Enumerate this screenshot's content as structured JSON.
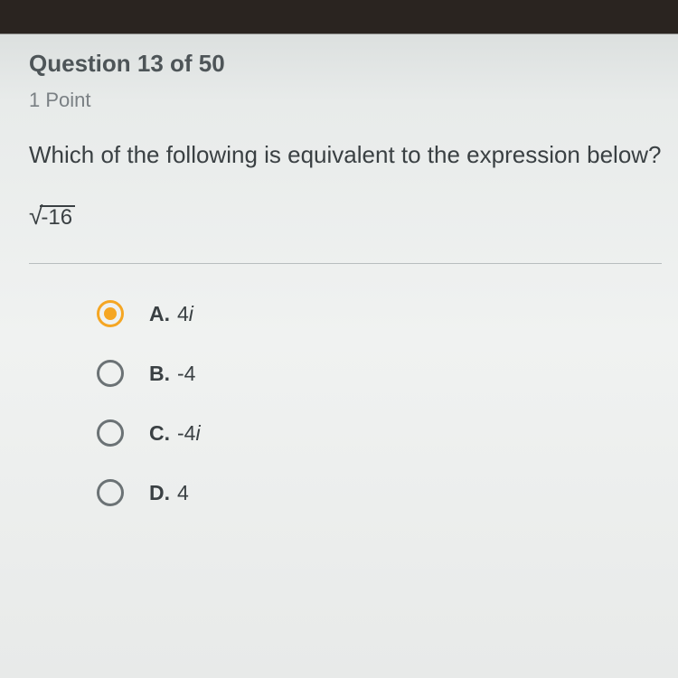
{
  "question": {
    "number": 13,
    "total": 50,
    "title_text": "Question 13 of 50",
    "points_text": "1 Point",
    "prompt": "Which of the following is equivalent to the expression below?",
    "expression_radicand": "-16"
  },
  "options": [
    {
      "letter": "A.",
      "value": "4",
      "suffix": "i",
      "selected": true
    },
    {
      "letter": "B.",
      "value": "-4",
      "suffix": "",
      "selected": false
    },
    {
      "letter": "C.",
      "value": "-4",
      "suffix": "i",
      "selected": false
    },
    {
      "letter": "D.",
      "value": "4",
      "suffix": "",
      "selected": false
    }
  ],
  "colors": {
    "accent": "#f5a623",
    "text_primary": "#3a4043",
    "text_secondary": "#7a8084",
    "radio_border": "#6b7275",
    "divider": "#b8bdbf"
  }
}
